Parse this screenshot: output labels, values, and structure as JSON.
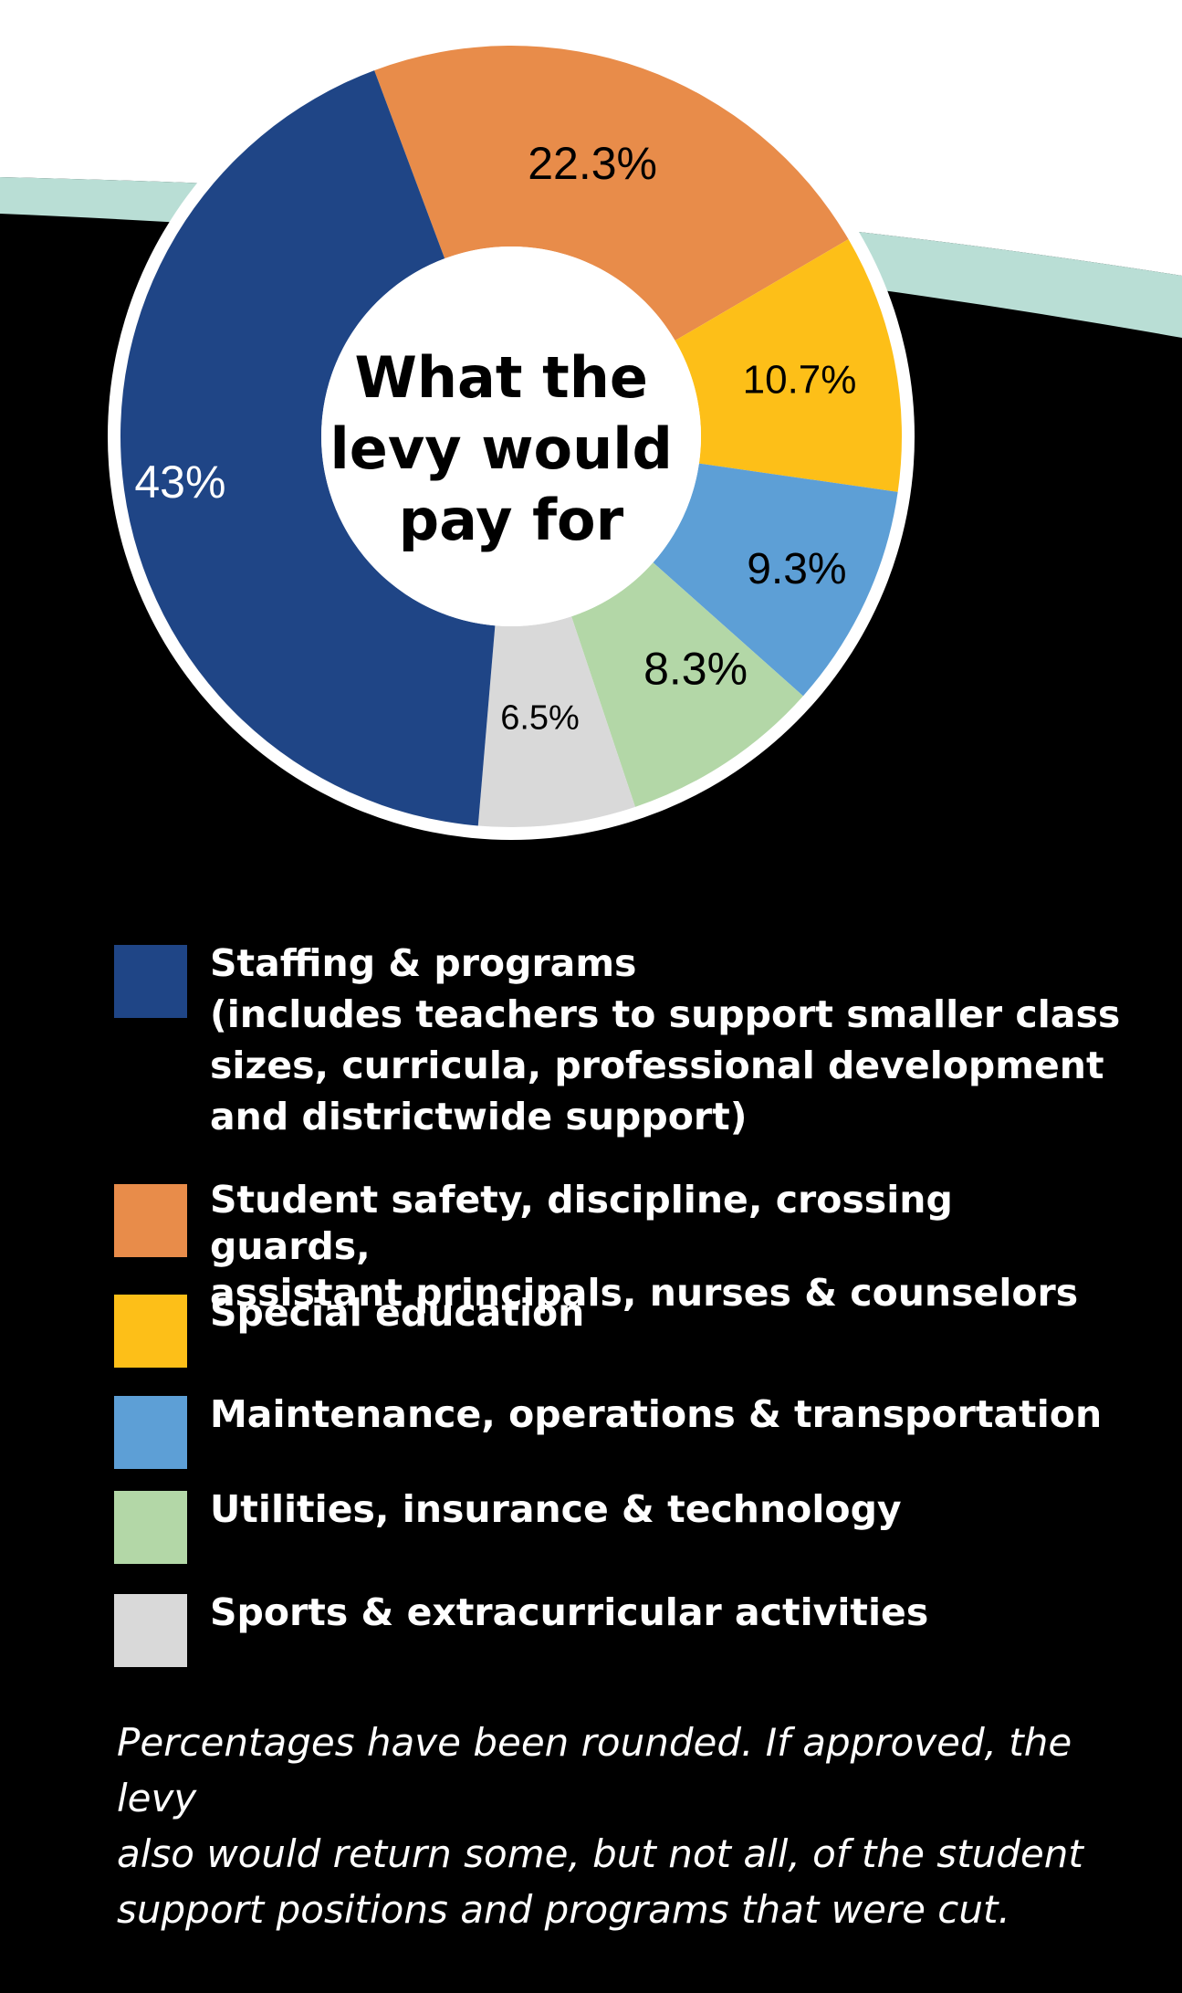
{
  "colors": {
    "background": "#000000",
    "teal_band": "#b9ded5",
    "top_white": "#ffffff",
    "ring": "#ffffff"
  },
  "chart_data": {
    "type": "pie",
    "title": "What the levy would pay for",
    "title_lines": [
      "What the",
      "levy would",
      "pay for"
    ],
    "slices": [
      {
        "label": "22.3%",
        "value": 22.3,
        "color": "#e88c4a",
        "legend": "Student safety, discipline, crossing guards, assistant principals, nurses & counselors"
      },
      {
        "label": "10.7%",
        "value": 10.7,
        "color": "#fdbf18",
        "legend": "Special education"
      },
      {
        "label": "9.3%",
        "value": 9.3,
        "color": "#5d9fd6",
        "legend": "Maintenance, operations & transportation"
      },
      {
        "label": "8.3%",
        "value": 8.3,
        "color": "#b3d7a7",
        "legend": "Utilities, insurance & technology"
      },
      {
        "label": "6.5%",
        "value": 6.5,
        "color": "#d9d9d9",
        "legend": "Sports & extracurricular activities"
      },
      {
        "label": "43%",
        "value": 43,
        "color": "#1f4586",
        "legend": "Staffing & programs"
      }
    ]
  },
  "legend": {
    "items": [
      {
        "color": "#1f4586",
        "text": "Staffing & programs",
        "subtext_lines": [
          "(includes teachers to support smaller class",
          "sizes, curricula, professional development",
          "and districtwide support)"
        ]
      },
      {
        "color": "#e88c4a",
        "text_lines": [
          "Student safety, discipline, crossing guards,",
          "assistant principals, nurses & counselors"
        ]
      },
      {
        "color": "#fdbf18",
        "text": "Special education"
      },
      {
        "color": "#5d9fd6",
        "text": "Maintenance, operations & transportation"
      },
      {
        "color": "#b3d7a7",
        "text": "Utilities, insurance & technology"
      },
      {
        "color": "#d9d9d9",
        "text": "Sports & extracurricular activities"
      }
    ]
  },
  "footnote": {
    "lines": [
      "Percentages have been rounded. If approved, the levy",
      "also would return some, but not all, of the student",
      "support positions and programs that were cut."
    ]
  }
}
